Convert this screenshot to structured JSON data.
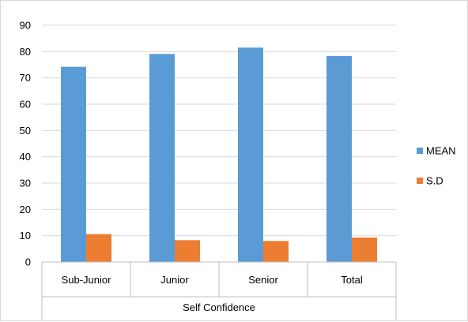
{
  "chart_data": {
    "type": "bar",
    "categories": [
      "Sub-Junior",
      "Junior",
      "Senior",
      "Total"
    ],
    "group_label": "Self Confidence",
    "series": [
      {
        "name": "MEAN",
        "color": "#5b9bd5",
        "values": [
          74.2,
          79.1,
          81.5,
          78.3
        ]
      },
      {
        "name": "S.D",
        "color": "#ed7d31",
        "values": [
          10.6,
          8.3,
          8.0,
          9.3
        ]
      }
    ],
    "ylim": [
      0,
      90
    ],
    "yticks": [
      0,
      10,
      20,
      30,
      40,
      50,
      60,
      70,
      80,
      90
    ],
    "grid": true,
    "legend_position": "right",
    "title": "",
    "xlabel": "Self Confidence",
    "ylabel": ""
  }
}
